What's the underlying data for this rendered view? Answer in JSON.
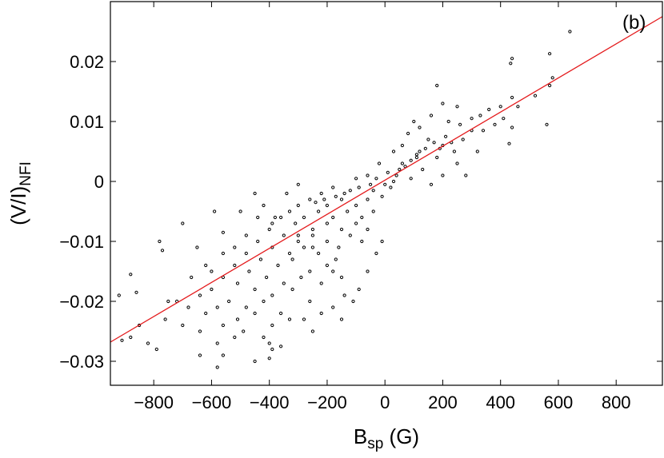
{
  "chart_data": {
    "type": "scatter",
    "panel_label": "(b)",
    "xlabel": {
      "main": "B",
      "sub": "sp",
      "rest": " (G)"
    },
    "ylabel": {
      "main": "(V/I)",
      "sub": "NFI"
    },
    "xlim": [
      -950,
      960
    ],
    "ylim": [
      -0.034,
      0.03
    ],
    "xticks": [
      -800,
      -600,
      -400,
      -200,
      0,
      200,
      400,
      600,
      800
    ],
    "xtick_labels": [
      "−800",
      "−600",
      "−400",
      "−200",
      "0",
      "200",
      "400",
      "600",
      "800"
    ],
    "yticks": [
      -0.03,
      -0.02,
      -0.01,
      0,
      0.01,
      0.02
    ],
    "ytick_labels": [
      "−0.03",
      "−0.02",
      "−0.01",
      "0",
      "0.01",
      "0.02"
    ],
    "grid": false,
    "fit_line": {
      "color": "#e41a1c",
      "x": [
        -950,
        960
      ],
      "y": [
        -0.0268,
        0.0275
      ]
    },
    "point_color": "#000000",
    "points": [
      [
        640,
        0.025
      ],
      [
        570,
        0.0213
      ],
      [
        440,
        0.0205
      ],
      [
        435,
        0.0197
      ],
      [
        580,
        0.0173
      ],
      [
        570,
        0.016
      ],
      [
        520,
        0.0143
      ],
      [
        440,
        0.014
      ],
      [
        460,
        0.0125
      ],
      [
        560,
        0.0095
      ],
      [
        440,
        0.009
      ],
      [
        430,
        0.0063
      ],
      [
        180,
        0.016
      ],
      [
        330,
        0.011
      ],
      [
        250,
        0.0125
      ],
      [
        300,
        0.0085
      ],
      [
        200,
        0.013
      ],
      [
        160,
        0.011
      ],
      [
        220,
        0.01
      ],
      [
        120,
        0.009
      ],
      [
        100,
        0.01
      ],
      [
        80,
        0.008
      ],
      [
        150,
        0.007
      ],
      [
        60,
        0.006
      ],
      [
        200,
        0.006
      ],
      [
        240,
        0.005
      ],
      [
        30,
        0.005
      ],
      [
        110,
        0.004
      ],
      [
        180,
        0.004
      ],
      [
        250,
        0.003
      ],
      [
        320,
        0.005
      ],
      [
        -20,
        0.003
      ],
      [
        50,
        0.002
      ],
      [
        130,
        0.002
      ],
      [
        200,
        0.001
      ],
      [
        280,
        0.001
      ],
      [
        -60,
        0.001
      ],
      [
        10,
        0.0015
      ],
      [
        90,
        0.0005
      ],
      [
        160,
        -0.0005
      ],
      [
        -100,
        0.0005
      ],
      [
        -180,
        -0.001
      ],
      [
        -140,
        -0.002
      ],
      [
        -90,
        -0.001
      ],
      [
        -40,
        -0.0015
      ],
      [
        20,
        -0.001
      ],
      [
        -220,
        -0.002
      ],
      [
        -260,
        -0.003
      ],
      [
        -200,
        -0.004
      ],
      [
        -150,
        -0.003
      ],
      [
        -100,
        -0.004
      ],
      [
        -60,
        -0.003
      ],
      [
        -10,
        -0.0025
      ],
      [
        -300,
        -0.004
      ],
      [
        -330,
        -0.005
      ],
      [
        -280,
        -0.006
      ],
      [
        -230,
        -0.005
      ],
      [
        -180,
        -0.006
      ],
      [
        -130,
        -0.005
      ],
      [
        -80,
        -0.006
      ],
      [
        -40,
        -0.005
      ],
      [
        -360,
        -0.006
      ],
      [
        -310,
        -0.007
      ],
      [
        -250,
        -0.008
      ],
      [
        -200,
        -0.007
      ],
      [
        -150,
        -0.008
      ],
      [
        -100,
        -0.007
      ],
      [
        -60,
        -0.008
      ],
      [
        -400,
        -0.008
      ],
      [
        -350,
        -0.009
      ],
      [
        -300,
        -0.01
      ],
      [
        -250,
        -0.009
      ],
      [
        -200,
        -0.01
      ],
      [
        -160,
        -0.011
      ],
      [
        -120,
        -0.009
      ],
      [
        -80,
        -0.01
      ],
      [
        -440,
        -0.01
      ],
      [
        -390,
        -0.011
      ],
      [
        -330,
        -0.012
      ],
      [
        -280,
        -0.011
      ],
      [
        -230,
        -0.012
      ],
      [
        -170,
        -0.013
      ],
      [
        -480,
        -0.012
      ],
      [
        -430,
        -0.013
      ],
      [
        -370,
        -0.014
      ],
      [
        -320,
        -0.013
      ],
      [
        -260,
        -0.015
      ],
      [
        -200,
        -0.014
      ],
      [
        -520,
        -0.014
      ],
      [
        -470,
        -0.015
      ],
      [
        -410,
        -0.016
      ],
      [
        -350,
        -0.017
      ],
      [
        -290,
        -0.016
      ],
      [
        -220,
        -0.017
      ],
      [
        -150,
        -0.016
      ],
      [
        -560,
        -0.016
      ],
      [
        -510,
        -0.017
      ],
      [
        -450,
        -0.018
      ],
      [
        -390,
        -0.019
      ],
      [
        -320,
        -0.018
      ],
      [
        -260,
        -0.02
      ],
      [
        -180,
        -0.021
      ],
      [
        -600,
        -0.018
      ],
      [
        -540,
        -0.02
      ],
      [
        -480,
        -0.021
      ],
      [
        -420,
        -0.02
      ],
      [
        -360,
        -0.022
      ],
      [
        -280,
        -0.023
      ],
      [
        -220,
        -0.022
      ],
      [
        -150,
        -0.023
      ],
      [
        -640,
        -0.019
      ],
      [
        -580,
        -0.021
      ],
      [
        -510,
        -0.023
      ],
      [
        -450,
        -0.022
      ],
      [
        -390,
        -0.024
      ],
      [
        -330,
        -0.023
      ],
      [
        -250,
        -0.025
      ],
      [
        -680,
        -0.021
      ],
      [
        -620,
        -0.022
      ],
      [
        -560,
        -0.024
      ],
      [
        -490,
        -0.025
      ],
      [
        -420,
        -0.026
      ],
      [
        -720,
        -0.02
      ],
      [
        -760,
        -0.023
      ],
      [
        -700,
        -0.024
      ],
      [
        -640,
        -0.025
      ],
      [
        -580,
        -0.027
      ],
      [
        -520,
        -0.026
      ],
      [
        -880,
        -0.026
      ],
      [
        -910,
        -0.0265
      ],
      [
        -850,
        -0.024
      ],
      [
        -790,
        -0.028
      ],
      [
        -820,
        -0.027
      ],
      [
        -700,
        -0.007
      ],
      [
        -650,
        -0.011
      ],
      [
        -590,
        -0.005
      ],
      [
        -780,
        -0.01
      ],
      [
        -770,
        -0.0115
      ],
      [
        -560,
        -0.0085
      ],
      [
        -620,
        -0.014
      ],
      [
        -670,
        -0.016
      ],
      [
        -750,
        -0.02
      ],
      [
        -860,
        -0.0185
      ],
      [
        -880,
        -0.0155
      ],
      [
        -920,
        -0.019
      ],
      [
        -560,
        -0.029
      ],
      [
        -580,
        -0.031
      ],
      [
        -400,
        -0.027
      ],
      [
        -390,
        -0.028
      ],
      [
        -360,
        -0.0275
      ],
      [
        -400,
        -0.0295
      ],
      [
        -450,
        -0.03
      ],
      [
        -640,
        -0.029
      ],
      [
        -450,
        -0.002
      ],
      [
        -500,
        -0.005
      ],
      [
        -420,
        -0.004
      ],
      [
        -380,
        -0.006
      ],
      [
        -340,
        -0.002
      ],
      [
        -300,
        -0.0005
      ],
      [
        -480,
        -0.009
      ],
      [
        -520,
        -0.011
      ],
      [
        -560,
        -0.012
      ],
      [
        -600,
        -0.015
      ],
      [
        -440,
        -0.006
      ],
      [
        -390,
        -0.007
      ],
      [
        -300,
        -0.009
      ],
      [
        -250,
        -0.011
      ],
      [
        -180,
        -0.015
      ],
      [
        -140,
        -0.019
      ],
      [
        -110,
        -0.02
      ],
      [
        -90,
        -0.018
      ],
      [
        -60,
        -0.015
      ],
      [
        -30,
        -0.012
      ],
      [
        -10,
        -0.01
      ],
      [
        30,
        0.0
      ],
      [
        70,
        0.0025
      ],
      [
        110,
        0.0045
      ],
      [
        140,
        0.0055
      ],
      [
        170,
        0.0065
      ],
      [
        210,
        0.0075
      ],
      [
        260,
        0.0095
      ],
      [
        300,
        0.0105
      ],
      [
        360,
        0.012
      ],
      [
        400,
        0.0125
      ],
      [
        40,
        0.001
      ],
      [
        -30,
        0.0005
      ],
      [
        0,
        -0.0005
      ],
      [
        -50,
        -0.0005
      ],
      [
        -120,
        -0.0015
      ],
      [
        -170,
        -0.0025
      ],
      [
        -210,
        -0.003
      ],
      [
        -240,
        -0.0035
      ],
      [
        60,
        0.003
      ],
      [
        90,
        0.0035
      ],
      [
        120,
        0.005
      ],
      [
        190,
        0.0055
      ],
      [
        230,
        0.0065
      ],
      [
        270,
        0.007
      ],
      [
        340,
        0.0085
      ],
      [
        380,
        0.0095
      ],
      [
        410,
        0.0105
      ]
    ]
  }
}
